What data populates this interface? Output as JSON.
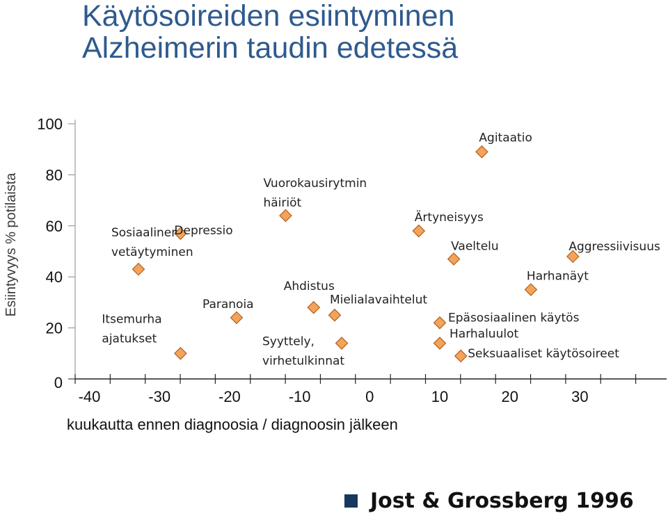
{
  "slide": {
    "title_line1": "Käytösoireiden esiintyminen",
    "title_line2": "Alzheimerin taudin edetessä",
    "source": "Jost & Grossberg 1996",
    "title_color": "#2e5a8e",
    "marker_fill": "#f3a45a",
    "marker_stroke": "#b35f1e",
    "bullet_color": "#17375e"
  },
  "chart_data": {
    "type": "scatter",
    "ylabel": "Esiintyvyys % potilaista",
    "xlabel": "kuukautta ennen diagnoosia  / diagnoosin jälkeen",
    "ylim": [
      0,
      100
    ],
    "xlim": [
      -43,
      52
    ],
    "y_ticks": [
      0,
      20,
      40,
      60,
      80,
      100
    ],
    "x_ticks": [
      -40,
      -30,
      -20,
      -10,
      0,
      10,
      20,
      30
    ],
    "grid": false,
    "points": [
      {
        "label": "Itsemurha ajatukset",
        "x": -27,
        "y": 10
      },
      {
        "label": "Sosiaalinen vetäytyminen",
        "x": -33,
        "y": 43
      },
      {
        "label": "Depressio",
        "x": -27,
        "y": 57
      },
      {
        "label": "Paranoia",
        "x": -19,
        "y": 24
      },
      {
        "label": "Vuorokausirytmin häiriöt",
        "x": -12,
        "y": 64
      },
      {
        "label": "Ahdistus",
        "x": -8,
        "y": 28
      },
      {
        "label": "Mielialavaihtelut",
        "x": -5,
        "y": 25
      },
      {
        "label": "Syyttely, virhetulkinnat",
        "x": -4,
        "y": 14
      },
      {
        "label": "Ärtyneisyys",
        "x": 7,
        "y": 58
      },
      {
        "label": "Epäsosiaalinen käytös",
        "x": 10,
        "y": 22
      },
      {
        "label": "Harhaluulot",
        "x": 10,
        "y": 14
      },
      {
        "label": "Vaeltelu",
        "x": 12,
        "y": 47
      },
      {
        "label": "Seksuaaliset käytösoireet",
        "x": 13,
        "y": 9
      },
      {
        "label": "Agitaatio",
        "x": 16,
        "y": 89
      },
      {
        "label": "Harhanäyt",
        "x": 23,
        "y": 35
      },
      {
        "label": "Aggressiivisuus",
        "x": 29,
        "y": 48
      }
    ]
  }
}
